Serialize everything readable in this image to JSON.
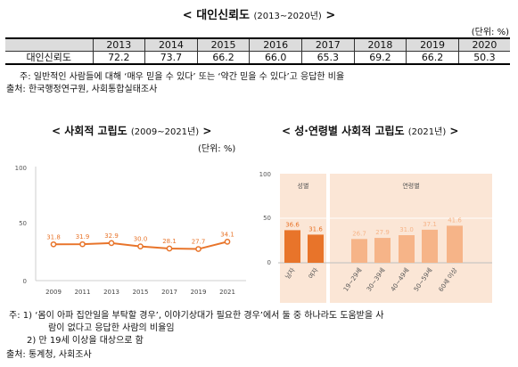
{
  "top_section": {
    "title": "대인신뢰도",
    "years_range": "(2013~2020년)",
    "unit": "(단위: %)",
    "row_label": "대인신뢰도",
    "note": "주: 일반적인 사람들에 대해 ‘매우 믿을 수 있다’ 또는 ‘약간 믿을 수 있다’고 응답한 비율",
    "source": "출처: 한국행정연구원, 사회통합실태조사"
  },
  "left_chart_header": {
    "title": "사회적 고립도",
    "years_range": "(2009~2021년)",
    "unit": "(단위: %)"
  },
  "right_chart_header": {
    "title": "성·연령별 사회적 고립도",
    "years_range": "(2021년)"
  },
  "bottom_notes": {
    "note1": "주: 1) ‘몸이 아파 집안일을 부탁할 경우’, 이야기상대가 필요한 경우’에서 둘 중 하나라도 도움받을 사",
    "note1_cont": "람이 없다고 응답한 사람의 비율임",
    "note2": "2) 만 19세 이상을 대상으로 함",
    "source": "출처: 통계청, 사회조사"
  },
  "chart_data": [
    {
      "type": "table",
      "title": "대인신뢰도",
      "columns": [
        "2013",
        "2014",
        "2015",
        "2016",
        "2017",
        "2018",
        "2019",
        "2020"
      ],
      "rows": [
        {
          "label": "대인신뢰도",
          "values": [
            "72.2",
            "73.7",
            "66.2",
            "66.0",
            "65.3",
            "69.2",
            "66.2",
            "50.3"
          ]
        }
      ]
    },
    {
      "type": "line",
      "title": "사회적 고립도",
      "x": [
        "2009",
        "2011",
        "2013",
        "2015",
        "2017",
        "2019",
        "2021"
      ],
      "values": [
        31.8,
        31.9,
        32.9,
        30.0,
        28.1,
        27.7,
        34.1
      ],
      "labels": [
        "31.8",
        "31.9",
        "32.9",
        "30.0",
        "28.1",
        "27.7",
        "34.1"
      ],
      "ylim": [
        0,
        100
      ],
      "yticks": [
        "0",
        "50",
        "100"
      ],
      "grid": false,
      "color": "#e8742a"
    },
    {
      "type": "bar",
      "title": "성·연령별 사회적 고립도",
      "groups": [
        {
          "name": "성별",
          "categories": [
            "남자",
            "여자"
          ],
          "values": [
            36.6,
            31.6
          ],
          "labels": [
            "36.6",
            "31.6"
          ],
          "color": "#e8742a"
        },
        {
          "name": "연령별",
          "categories": [
            "19~29세",
            "30~39세",
            "40~49세",
            "50~59세",
            "60세 이상"
          ],
          "values": [
            26.7,
            27.9,
            31.0,
            37.1,
            41.6
          ],
          "labels": [
            "26.7",
            "27.9",
            "31.0",
            "37.1",
            "41.6"
          ],
          "color": "#f6b488"
        }
      ],
      "ylim": [
        0,
        100
      ],
      "yticks": [
        "0",
        "50",
        "100"
      ],
      "grid": true,
      "group_bg": "#fbe6d6"
    }
  ]
}
